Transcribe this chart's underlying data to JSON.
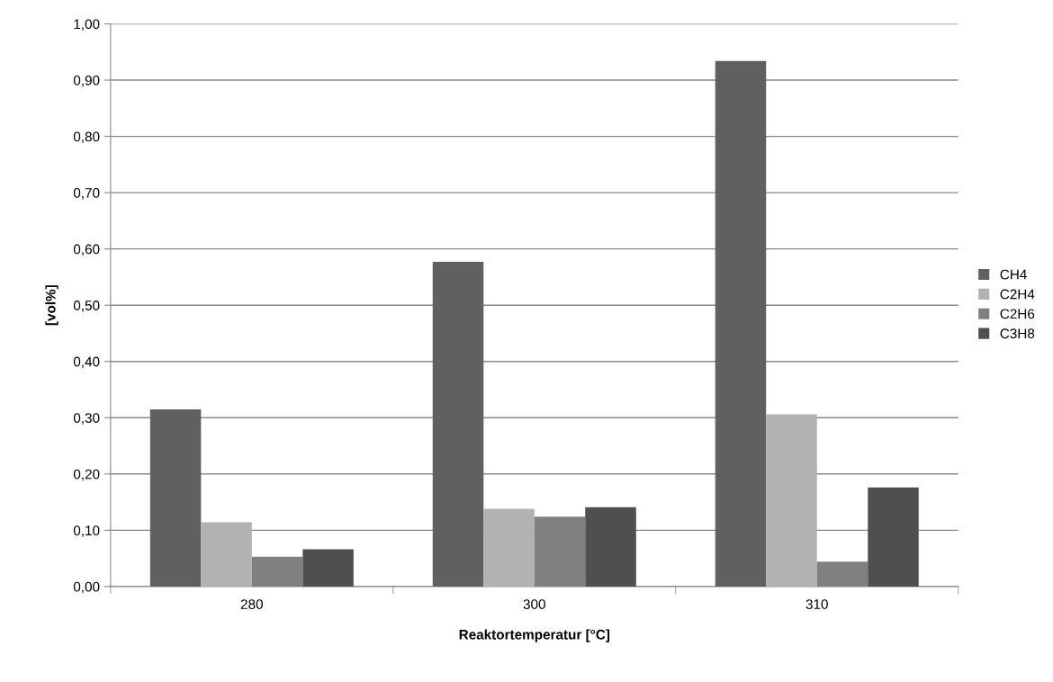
{
  "chart_data": {
    "type": "bar",
    "xlabel": "Reaktortemperatur [°C]",
    "ylabel": "[vol%]",
    "categories": [
      "280",
      "300",
      "310"
    ],
    "series": [
      {
        "name": "CH4",
        "color": "#606060",
        "values": [
          0.315,
          0.577,
          0.934
        ]
      },
      {
        "name": "C2H4",
        "color": "#b2b2b2",
        "values": [
          0.114,
          0.138,
          0.306
        ]
      },
      {
        "name": "C2H6",
        "color": "#808080",
        "values": [
          0.053,
          0.124,
          0.044
        ]
      },
      {
        "name": "C3H8",
        "color": "#4f4f4f",
        "values": [
          0.066,
          0.141,
          0.176
        ]
      }
    ],
    "ylim": [
      0,
      1
    ],
    "yticks": [
      {
        "value": 0,
        "label": "0,00"
      },
      {
        "value": 0.1,
        "label": "0,10"
      },
      {
        "value": 0.2,
        "label": "0,20"
      },
      {
        "value": 0.3,
        "label": "0,30"
      },
      {
        "value": 0.4,
        "label": "0,40"
      },
      {
        "value": 0.5,
        "label": "0,50"
      },
      {
        "value": 0.6,
        "label": "0,60"
      },
      {
        "value": 0.7,
        "label": "0,70"
      },
      {
        "value": 0.8,
        "label": "0,80"
      },
      {
        "value": 0.9,
        "label": "0,90"
      },
      {
        "value": 1,
        "label": "1,00"
      }
    ],
    "grid": "y",
    "legend": "right"
  }
}
